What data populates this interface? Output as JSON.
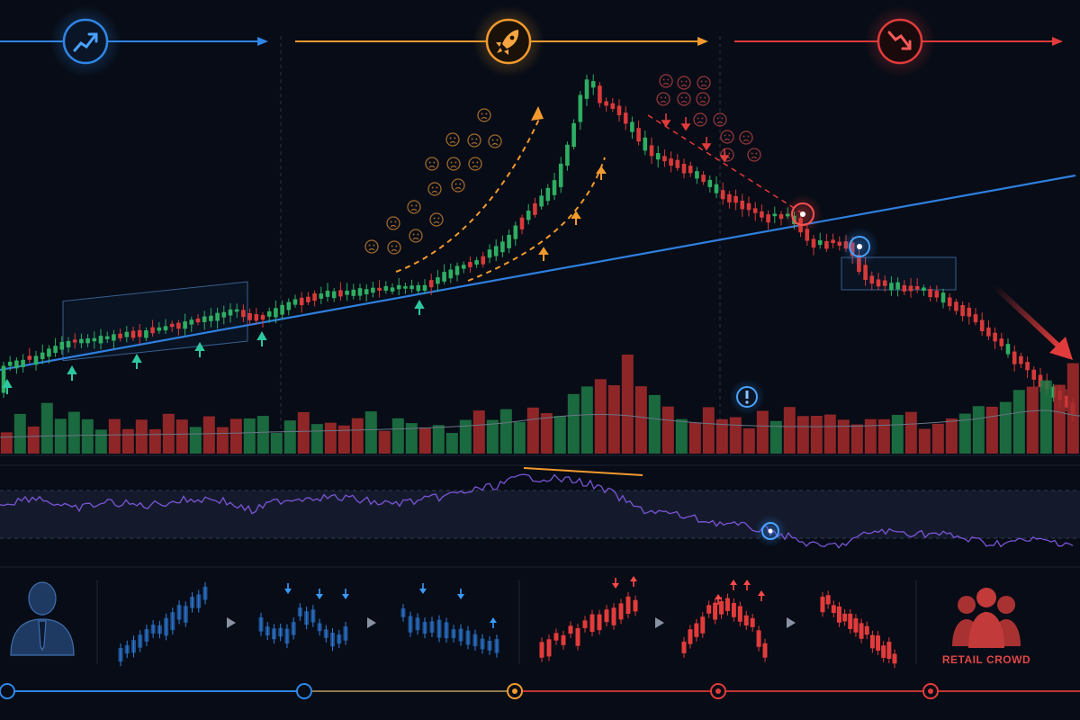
{
  "colors": {
    "background": "#070c16",
    "bull": "#2fae63",
    "bear": "#d83a3a",
    "trend_line": "#2f7fe0",
    "phase_accumulation": "#2f86e8",
    "phase_markup": "#f29a2e",
    "phase_markdown": "#e23b3b",
    "rsi": "#7a55d6",
    "marker_up": "#2ec7a0"
  },
  "phases": [
    {
      "name": "accumulation",
      "icon": "trend-up-icon",
      "color": "#2f86e8"
    },
    {
      "name": "markup",
      "icon": "rocket-icon",
      "color": "#f29a2e"
    },
    {
      "name": "distribution",
      "icon": "trend-down-icon",
      "color": "#e23b3b"
    }
  ],
  "panels": [
    "price",
    "volume",
    "rsi"
  ],
  "annotations": {
    "volume_alert_icon": "exclamation-icon",
    "bottom_left_icon": "investor-icon",
    "bottom_right_icon": "crowd-icon"
  },
  "bottom_strip": {
    "crowd_label": "RETAIL CROWD",
    "sequence": [
      {
        "type": "mini-uptrend",
        "color": "#2f7fe0"
      },
      {
        "type": "mini-shakeout",
        "color": "#2f7fe0"
      },
      {
        "type": "mini-range",
        "color": "#2f7fe0"
      },
      {
        "type": "mini-rally",
        "color": "#e23b3b"
      },
      {
        "type": "mini-top",
        "color": "#e23b3b"
      },
      {
        "type": "mini-decline",
        "color": "#e23b3b"
      }
    ]
  },
  "timeline_colors": [
    "#2f86e8",
    "#2f86e8",
    "#f29a2e",
    "#e23b3b",
    "#e23b3b"
  ],
  "chart_data": {
    "type": "candlestick",
    "title": "",
    "xlabel": "",
    "ylabel": "",
    "grid": false,
    "series": [
      {
        "name": "",
        "shape": "price",
        "points": [
          [
            0,
            408
          ],
          [
            40,
            396
          ],
          [
            70,
            380
          ],
          [
            110,
            376
          ],
          [
            150,
            370
          ],
          [
            190,
            362
          ],
          [
            230,
            352
          ],
          [
            260,
            346
          ],
          [
            290,
            352
          ],
          [
            320,
            336
          ],
          [
            360,
            326
          ],
          [
            400,
            322
          ],
          [
            440,
            320
          ],
          [
            470,
            318
          ],
          [
            500,
            300
          ],
          [
            530,
            290
          ],
          [
            560,
            268
          ],
          [
            590,
            232
          ],
          [
            615,
            205
          ],
          [
            635,
            150
          ],
          [
            648,
            92
          ],
          [
            657,
            88
          ],
          [
            665,
            112
          ],
          [
            680,
            118
          ],
          [
            700,
            142
          ],
          [
            725,
            172
          ],
          [
            760,
            185
          ],
          [
            790,
            208
          ],
          [
            820,
            226
          ],
          [
            850,
            240
          ],
          [
            880,
            240
          ],
          [
            900,
            270
          ],
          [
            920,
            268
          ],
          [
            940,
            272
          ],
          [
            965,
            312
          ],
          [
            1000,
            318
          ],
          [
            1040,
            326
          ],
          [
            1070,
            345
          ],
          [
            1100,
            372
          ],
          [
            1130,
            400
          ],
          [
            1160,
            428
          ],
          [
            1190,
            452
          ]
        ]
      },
      {
        "name": "",
        "shape": "volume",
        "levels": [
          0.3,
          0.45,
          0.3,
          0.5,
          0.35,
          0.55,
          0.4,
          0.3,
          0.5,
          0.35,
          0.45,
          0.3,
          0.4,
          0.35,
          0.3,
          0.45,
          0.3,
          0.5,
          0.35,
          0.4,
          0.3,
          0.35,
          0.45,
          0.3,
          0.4,
          0.3,
          0.35,
          0.45,
          0.3,
          0.4,
          0.35,
          0.3,
          0.4,
          0.3,
          0.35,
          0.45,
          0.4,
          0.5,
          0.45,
          0.6,
          0.55,
          0.5,
          0.65,
          0.7,
          0.85,
          0.95,
          1.0,
          0.8,
          0.6,
          0.5,
          0.45,
          0.4,
          0.5,
          0.45,
          0.4,
          0.35,
          0.45,
          0.4,
          0.6,
          0.5,
          0.4,
          0.45,
          0.35,
          0.4,
          0.45,
          0.5,
          0.4,
          0.45,
          0.35,
          0.4,
          0.45,
          0.5,
          0.55,
          0.6,
          0.7,
          0.85,
          0.95,
          0.75,
          0.8,
          0.9
        ]
      },
      {
        "name": "",
        "shape": "rsi",
        "points": [
          [
            0,
            560
          ],
          [
            40,
            552
          ],
          [
            80,
            566
          ],
          [
            120,
            558
          ],
          [
            160,
            562
          ],
          [
            200,
            556
          ],
          [
            240,
            554
          ],
          [
            280,
            568
          ],
          [
            310,
            556
          ],
          [
            350,
            552
          ],
          [
            390,
            554
          ],
          [
            430,
            560
          ],
          [
            470,
            556
          ],
          [
            510,
            548
          ],
          [
            550,
            540
          ],
          [
            580,
            530
          ],
          [
            620,
            532
          ],
          [
            650,
            536
          ],
          [
            680,
            548
          ],
          [
            710,
            566
          ],
          [
            740,
            570
          ],
          [
            780,
            578
          ],
          [
            820,
            584
          ],
          [
            856,
            590
          ],
          [
            880,
            598
          ],
          [
            910,
            608
          ],
          [
            940,
            604
          ],
          [
            970,
            590
          ],
          [
            1010,
            592
          ],
          [
            1050,
            594
          ],
          [
            1100,
            604
          ],
          [
            1150,
            600
          ],
          [
            1195,
            604
          ]
        ]
      }
    ]
  }
}
